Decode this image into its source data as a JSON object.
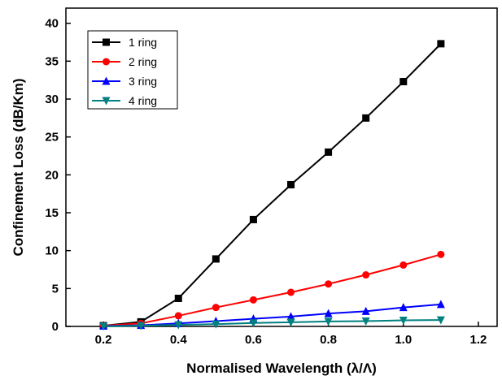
{
  "chart_data": {
    "type": "line",
    "xlabel": "Normalised Wavelength (λ/Λ)",
    "ylabel": "Confinement Loss (dB/Km)",
    "xlim": [
      0.1,
      1.25
    ],
    "ylim": [
      0,
      42
    ],
    "xticks": [
      "0.2",
      "0.4",
      "0.6",
      "0.8",
      "1.0",
      "1.2"
    ],
    "yticks": [
      "0",
      "5",
      "10",
      "15",
      "20",
      "25",
      "30",
      "35",
      "40"
    ],
    "grid": false,
    "legend_position": "top-left",
    "x": [
      0.2,
      0.3,
      0.4,
      0.5,
      0.6,
      0.7,
      0.8,
      0.9,
      1.0,
      1.1
    ],
    "series": [
      {
        "name": "1 ring",
        "color": "#000000",
        "marker": "square",
        "values": [
          0.1,
          0.6,
          3.7,
          8.9,
          14.1,
          18.7,
          23.0,
          27.5,
          32.3,
          37.3
        ]
      },
      {
        "name": "2 ring",
        "color": "#ff0000",
        "marker": "circle",
        "values": [
          0.1,
          0.4,
          1.4,
          2.5,
          3.5,
          4.5,
          5.6,
          6.8,
          8.1,
          9.5
        ]
      },
      {
        "name": "3 ring",
        "color": "#0000ff",
        "marker": "triangle-up",
        "values": [
          0.05,
          0.15,
          0.4,
          0.7,
          1.0,
          1.3,
          1.7,
          2.0,
          2.5,
          2.9
        ]
      },
      {
        "name": "4 ring",
        "color": "#008080",
        "marker": "triangle-down",
        "values": [
          0.02,
          0.1,
          0.2,
          0.3,
          0.45,
          0.55,
          0.65,
          0.7,
          0.8,
          0.85
        ]
      }
    ]
  }
}
